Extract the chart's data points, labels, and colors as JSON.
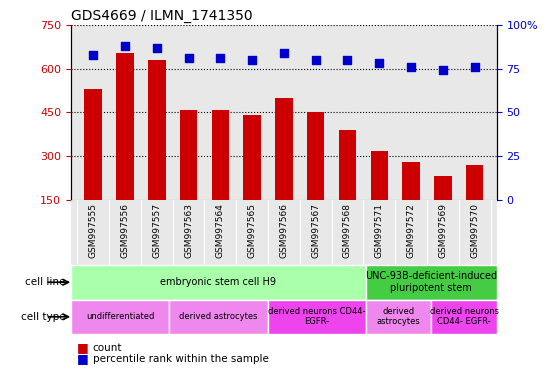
{
  "title": "GDS4669 / ILMN_1741350",
  "samples": [
    "GSM997555",
    "GSM997556",
    "GSM997557",
    "GSM997563",
    "GSM997564",
    "GSM997565",
    "GSM997566",
    "GSM997567",
    "GSM997568",
    "GSM997571",
    "GSM997572",
    "GSM997569",
    "GSM997570"
  ],
  "counts": [
    530,
    655,
    630,
    457,
    457,
    440,
    500,
    452,
    388,
    318,
    278,
    232,
    268
  ],
  "percentiles": [
    83,
    88,
    87,
    81,
    81,
    80,
    84,
    80,
    80,
    78,
    76,
    74,
    76
  ],
  "ylim_left": [
    150,
    750
  ],
  "ylim_right": [
    0,
    100
  ],
  "yticks_left": [
    150,
    300,
    450,
    600,
    750
  ],
  "yticks_right": [
    0,
    25,
    50,
    75,
    100
  ],
  "bar_color": "#cc0000",
  "dot_color": "#0000cc",
  "plot_bg": "#e8e8e8",
  "cell_line_groups": [
    {
      "label": "embryonic stem cell H9",
      "start": 0,
      "end": 9,
      "color": "#aaffaa"
    },
    {
      "label": "UNC-93B-deficient-induced\npluripotent stem",
      "start": 9,
      "end": 13,
      "color": "#44cc44"
    }
  ],
  "cell_type_groups": [
    {
      "label": "undifferentiated",
      "start": 0,
      "end": 3,
      "color": "#ee88ee"
    },
    {
      "label": "derived astrocytes",
      "start": 3,
      "end": 6,
      "color": "#ee88ee"
    },
    {
      "label": "derived neurons CD44-\nEGFR-",
      "start": 6,
      "end": 9,
      "color": "#ee44ee"
    },
    {
      "label": "derived\nastrocytes",
      "start": 9,
      "end": 11,
      "color": "#ee88ee"
    },
    {
      "label": "derived neurons\nCD44- EGFR-",
      "start": 11,
      "end": 13,
      "color": "#ee44ee"
    }
  ]
}
